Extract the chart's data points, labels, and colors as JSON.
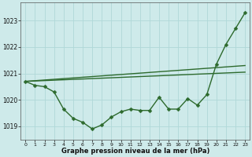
{
  "title": "Graphe pression niveau de la mer (hPa)",
  "background_color": "#ceeaea",
  "grid_color": "#b0d8d8",
  "line_color": "#2d6a2d",
  "xlim": [
    -0.5,
    23.5
  ],
  "ylim": [
    1018.5,
    1023.7
  ],
  "yticks": [
    1019,
    1020,
    1021,
    1022,
    1023
  ],
  "xticks": [
    0,
    1,
    2,
    3,
    4,
    5,
    6,
    7,
    8,
    9,
    10,
    11,
    12,
    13,
    14,
    15,
    16,
    17,
    18,
    19,
    20,
    21,
    22,
    23
  ],
  "series_main": {
    "x": [
      0,
      1,
      2,
      3,
      4,
      5,
      6,
      7,
      8,
      9,
      10,
      11,
      12,
      13,
      14,
      15,
      16,
      17,
      18,
      19,
      20,
      21,
      22,
      23
    ],
    "y": [
      1020.7,
      1020.55,
      1020.5,
      1020.3,
      1019.65,
      1019.3,
      1019.15,
      1018.9,
      1019.05,
      1019.35,
      1019.55,
      1019.65,
      1019.6,
      1019.6,
      1020.1,
      1019.65,
      1019.65,
      1020.05,
      1019.8,
      1020.2,
      1021.35,
      1022.1,
      1022.7,
      1023.3
    ]
  },
  "series_line1": {
    "x": [
      0,
      23
    ],
    "y": [
      1020.7,
      1021.05
    ]
  },
  "series_line2": {
    "x": [
      0,
      23
    ],
    "y": [
      1020.7,
      1021.3
    ]
  },
  "marker": "D",
  "markersize": 2.5,
  "linewidth": 1.0
}
